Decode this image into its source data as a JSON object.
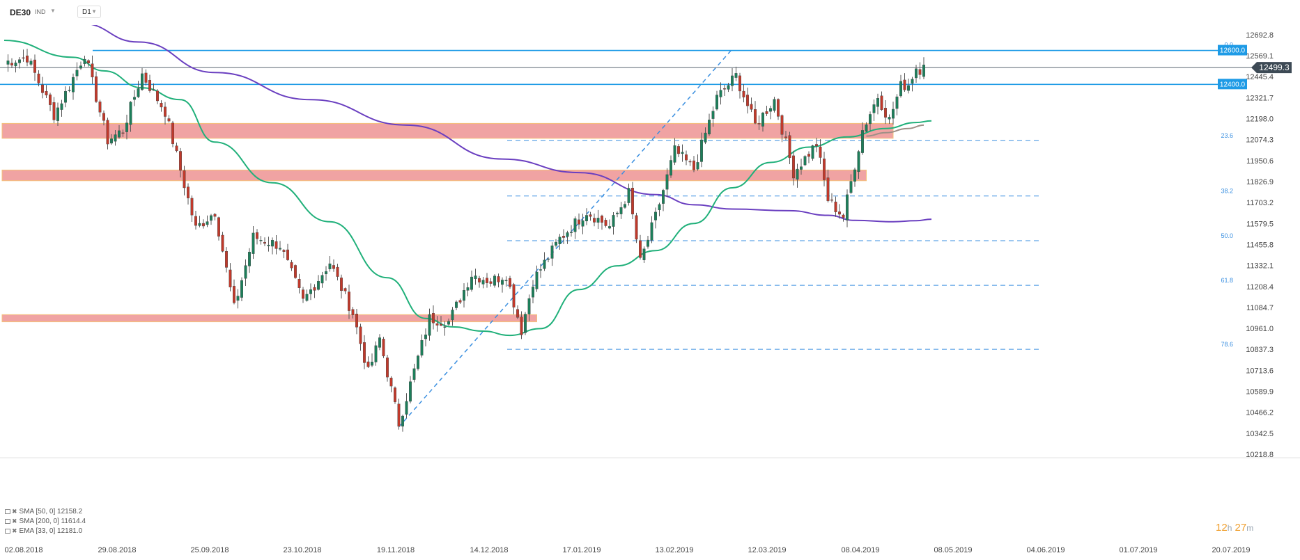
{
  "header": {
    "symbol": "DE30",
    "instrument_type": "IND",
    "timeframe": "D1"
  },
  "indicators": [
    {
      "label": "SMA [50, 0]",
      "value": "12158.2",
      "color": "#20b07a"
    },
    {
      "label": "SMA [200, 0]",
      "value": "11614.4",
      "color": "#6a3fc0"
    },
    {
      "label": "EMA [33, 0]",
      "value": "12181.0",
      "color": "#9e8f86"
    }
  ],
  "countdown": {
    "hours": "12",
    "h_unit": "h",
    "minutes": "27",
    "m_unit": "m"
  },
  "colors": {
    "up": "#1d7e5a",
    "down": "#c0392b",
    "zone": "#f0a3a3",
    "level_line": "#1e9be6",
    "fib": "#3a8fe0",
    "current_price_bg": "#3d4a55"
  },
  "chart_data": {
    "type": "candlestick",
    "ylim": [
      10218.8,
      12750
    ],
    "y_ticks": [
      12692.8,
      12569.1,
      12445.4,
      12321.7,
      12198.0,
      12074.3,
      11950.6,
      11826.9,
      11703.2,
      11579.5,
      11455.8,
      11332.1,
      11208.4,
      11084.7,
      10961.0,
      10837.3,
      10713.6,
      10589.9,
      10466.2,
      10342.5,
      10218.8
    ],
    "y_tick_labels": [
      "12692.8",
      "12569.1",
      "12445.4",
      "12321.7",
      "12198.0",
      "12074.3",
      "11950.6",
      "11826.9",
      "11703.2",
      "11579.5",
      "11455.8",
      "11332.1",
      "11208.4",
      "11084.7",
      "10961.0",
      "10837.3",
      "10713.6",
      "10589.9",
      "10466.2",
      "10342.5",
      "10218.8"
    ],
    "x_labels": [
      "02.08.2018",
      "29.08.2018",
      "25.09.2018",
      "23.10.2018",
      "19.11.2018",
      "14.12.2018",
      "17.01.2019",
      "13.02.2019",
      "12.03.2019",
      "08.04.2019",
      "08.05.2019",
      "04.06.2019",
      "01.07.2019",
      "20.07.2019"
    ],
    "current_price": {
      "label": "12499.3",
      "value": 12499.3
    },
    "levels": [
      {
        "label": "12600.0",
        "value": 12600.0
      },
      {
        "label": "12400.0",
        "value": 12400.0
      }
    ],
    "fib_levels": [
      {
        "label": "0.0",
        "value": 12605
      },
      {
        "label": "23.6",
        "value": 12070
      },
      {
        "label": "38.2",
        "value": 11742
      },
      {
        "label": "50.0",
        "value": 11478
      },
      {
        "label": "61.8",
        "value": 11215
      },
      {
        "label": "78.6",
        "value": 10838
      }
    ],
    "zones": [
      {
        "from_bar": 0,
        "to_bar": 232,
        "low": 12082,
        "high": 12170
      },
      {
        "from_bar": 0,
        "to_bar": 225,
        "low": 11832,
        "high": 11895
      },
      {
        "from_bar": 59,
        "to_bar": 139,
        "low": 11000,
        "high": 11042
      }
    ],
    "trendline": {
      "from": {
        "bar": 103,
        "value": 10380
      },
      "to": {
        "bar": 190,
        "value": 12608
      }
    },
    "candle_anchors": [
      [
        0,
        12530
      ],
      [
        6,
        12560
      ],
      [
        13,
        12220
      ],
      [
        17,
        12390
      ],
      [
        21,
        12580
      ],
      [
        27,
        12070
      ],
      [
        31,
        12130
      ],
      [
        36,
        12460
      ],
      [
        42,
        12240
      ],
      [
        50,
        11550
      ],
      [
        55,
        11650
      ],
      [
        60,
        11080
      ],
      [
        65,
        11500
      ],
      [
        72,
        11450
      ],
      [
        78,
        11120
      ],
      [
        85,
        11350
      ],
      [
        91,
        11050
      ],
      [
        95,
        10700
      ],
      [
        98,
        10900
      ],
      [
        103,
        10400
      ],
      [
        111,
        11020
      ],
      [
        116,
        11000
      ],
      [
        122,
        11280
      ],
      [
        127,
        11240
      ],
      [
        131,
        11280
      ],
      [
        135,
        10950
      ],
      [
        138,
        11240
      ],
      [
        145,
        11490
      ],
      [
        152,
        11650
      ],
      [
        158,
        11560
      ],
      [
        163,
        11760
      ],
      [
        166,
        11350
      ],
      [
        170,
        11620
      ],
      [
        175,
        12010
      ],
      [
        180,
        11900
      ],
      [
        186,
        12320
      ],
      [
        191,
        12450
      ],
      [
        196,
        12160
      ],
      [
        201,
        12310
      ],
      [
        206,
        11880
      ],
      [
        212,
        12050
      ],
      [
        215,
        11720
      ],
      [
        219,
        11620
      ],
      [
        224,
        12130
      ],
      [
        228,
        12330
      ],
      [
        231,
        12190
      ],
      [
        234,
        12390
      ],
      [
        236,
        12400
      ],
      [
        238,
        12500
      ],
      [
        239,
        12490
      ],
      [
        240,
        12515
      ]
    ],
    "sma50": [
      [
        0,
        12660
      ],
      [
        18,
        12560
      ],
      [
        26,
        12480
      ],
      [
        36,
        12380
      ],
      [
        46,
        12310
      ],
      [
        55,
        12060
      ],
      [
        70,
        11820
      ],
      [
        85,
        11590
      ],
      [
        100,
        11260
      ],
      [
        110,
        11020
      ],
      [
        117,
        10970
      ],
      [
        125,
        10945
      ],
      [
        132,
        10920
      ],
      [
        140,
        10960
      ],
      [
        150,
        11190
      ],
      [
        160,
        11330
      ],
      [
        170,
        11420
      ],
      [
        180,
        11580
      ],
      [
        190,
        11790
      ],
      [
        200,
        11940
      ],
      [
        210,
        12030
      ],
      [
        220,
        12090
      ],
      [
        230,
        12140
      ],
      [
        238,
        12175
      ],
      [
        242,
        12185
      ]
    ],
    "sma200": [
      [
        0,
        12800
      ],
      [
        20,
        12760
      ],
      [
        35,
        12650
      ],
      [
        55,
        12470
      ],
      [
        80,
        12310
      ],
      [
        105,
        12160
      ],
      [
        130,
        11960
      ],
      [
        150,
        11880
      ],
      [
        170,
        11750
      ],
      [
        180,
        11690
      ],
      [
        190,
        11665
      ],
      [
        205,
        11655
      ],
      [
        215,
        11628
      ],
      [
        222,
        11598
      ],
      [
        232,
        11590
      ],
      [
        238,
        11596
      ],
      [
        242,
        11605
      ]
    ],
    "ema33": [
      [
        225,
        12095
      ],
      [
        230,
        12115
      ],
      [
        236,
        12140
      ],
      [
        240,
        12160
      ]
    ]
  }
}
